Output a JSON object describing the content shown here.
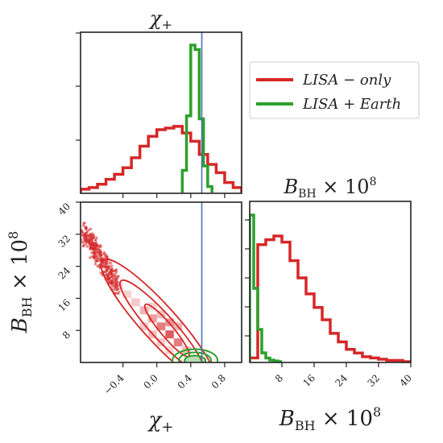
{
  "chart_data": {
    "type": "corner",
    "colors": {
      "lisa_only": "#d62728",
      "lisa_earth": "#2ca02c",
      "truth_line": "#4c72b0"
    },
    "legend": {
      "placement": "upper-right",
      "entries": [
        {
          "label": "LISA − only",
          "color": "#d62728"
        },
        {
          "label": "LISA + Earth",
          "color": "#2ca02c"
        }
      ]
    },
    "truth": {
      "chi_plus": 0.53
    },
    "panels": [
      {
        "id": "chi-hist",
        "title": "χ+",
        "xlim": [
          -0.9,
          1.0
        ],
        "series": [
          {
            "name": "LISA − only",
            "color": "#d62728",
            "bins": [
              -0.9,
              -0.8,
              -0.7,
              -0.6,
              -0.5,
              -0.4,
              -0.3,
              -0.2,
              -0.1,
              0.0,
              0.1,
              0.2,
              0.3,
              0.4,
              0.5,
              0.6,
              0.7,
              0.8,
              0.9,
              1.0
            ],
            "counts": [
              2,
              3,
              5,
              8,
              11,
              15,
              21,
              28,
              34,
              38,
              39,
              40,
              36,
              31,
              23,
              17,
              12,
              6,
              3
            ]
          },
          {
            "name": "LISA + Earth",
            "color": "#2ca02c",
            "bins": [
              0.3,
              0.35,
              0.4,
              0.45,
              0.5,
              0.55,
              0.6,
              0.65
            ],
            "counts": [
              15,
              52,
              100,
              97,
              50,
              18,
              4
            ]
          }
        ]
      },
      {
        "id": "bbh-hist",
        "title": "B_BH × 10^8",
        "xlim": [
          0,
          40
        ],
        "xticks": [
          "8",
          "16",
          "24",
          "32",
          "40"
        ],
        "series": [
          {
            "name": "LISA − only",
            "color": "#d62728",
            "bins": [
              0,
              2,
              4,
              6,
              8,
              10,
              12,
              14,
              16,
              18,
              20,
              22,
              24,
              26,
              28,
              30,
              32,
              34,
              36,
              38,
              40
            ],
            "counts": [
              3,
              95,
              99,
              102,
              97,
              82,
              68,
              55,
              44,
              34,
              23,
              16,
              10,
              7,
              4,
              3,
              2,
              1,
              1,
              0
            ]
          },
          {
            "name": "LISA + Earth",
            "color": "#2ca02c",
            "bins": [
              0,
              1,
              2,
              3,
              4,
              5,
              6,
              7,
              8
            ],
            "counts": [
              200,
              100,
              44,
              12,
              5,
              2,
              1,
              0
            ]
          }
        ]
      },
      {
        "id": "joint",
        "xlim": [
          -0.9,
          1.0
        ],
        "ylim": [
          0,
          40
        ],
        "xticks": [
          "−0.4",
          "0.0",
          "0.4",
          "0.8"
        ],
        "yticks": [
          "8",
          "16",
          "24",
          "32",
          "40"
        ]
      }
    ],
    "axis_labels": {
      "x_left": "χ+",
      "x_right": "B_BH × 10^8",
      "y_left": "B_BH × 10^8"
    }
  }
}
